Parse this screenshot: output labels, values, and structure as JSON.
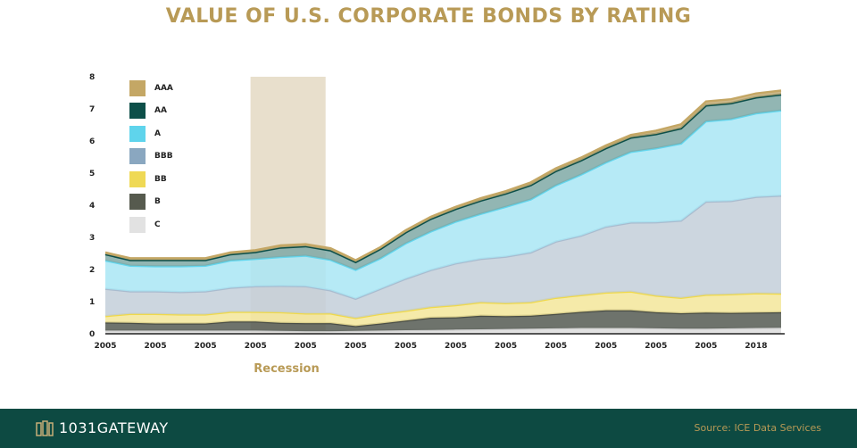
{
  "colors": {
    "title": "#b89a56",
    "footer_bg": "#0d4a42",
    "source_text": "#b89a56",
    "recession_band": "#e8dfcc",
    "recession_label": "#b89a56"
  },
  "brand": {
    "logo_text": "1031GATEWAY",
    "logo_icon": "gateway-logo-icon"
  },
  "source": "Source: ICE Data Services",
  "chart_data": {
    "type": "area",
    "stacked": true,
    "title": "VALUE OF U.S. CORPORATE BONDS BY RATING",
    "x": [
      0,
      0.5,
      1,
      1.5,
      2,
      2.5,
      3,
      3.5,
      4,
      4.5,
      5,
      5.5,
      6,
      6.5,
      7,
      7.5,
      8,
      8.5,
      9,
      9.5,
      10,
      10.5,
      11,
      11.5,
      12,
      12.5,
      13,
      13.5
    ],
    "x_tick_labels": [
      "2005",
      "2005",
      "2005",
      "2005",
      "2005",
      "2005",
      "2005",
      "2005",
      "2005",
      "2005",
      "2005",
      "2005",
      "2005",
      "2018"
    ],
    "x_tick_positions": [
      0,
      1,
      2,
      3,
      4,
      5,
      6,
      7,
      8,
      9,
      10,
      11,
      12,
      13
    ],
    "ylim": [
      0,
      8
    ],
    "y_ticks": [
      0,
      1,
      2,
      3,
      4,
      5,
      6,
      7,
      8
    ],
    "grid": false,
    "legend": "top-left",
    "recession": {
      "start": 2.9,
      "end": 4.4,
      "label": "Recession"
    },
    "series": [
      {
        "name": "C",
        "color": "#dcdcdc",
        "values": [
          0.1,
          0.1,
          0.1,
          0.1,
          0.1,
          0.1,
          0.1,
          0.09,
          0.08,
          0.08,
          0.09,
          0.1,
          0.11,
          0.12,
          0.13,
          0.14,
          0.15,
          0.16,
          0.17,
          0.18,
          0.18,
          0.18,
          0.17,
          0.16,
          0.16,
          0.17,
          0.18,
          0.19
        ]
      },
      {
        "name": "B",
        "color": "#555a52",
        "values": [
          0.25,
          0.24,
          0.22,
          0.22,
          0.22,
          0.28,
          0.28,
          0.25,
          0.25,
          0.25,
          0.15,
          0.22,
          0.3,
          0.38,
          0.38,
          0.42,
          0.4,
          0.4,
          0.45,
          0.5,
          0.55,
          0.55,
          0.5,
          0.48,
          0.5,
          0.48,
          0.48,
          0.48
        ]
      },
      {
        "name": "BB",
        "color": "#f3e69a",
        "values": [
          0.2,
          0.28,
          0.3,
          0.28,
          0.28,
          0.3,
          0.3,
          0.33,
          0.3,
          0.3,
          0.25,
          0.3,
          0.3,
          0.33,
          0.38,
          0.42,
          0.4,
          0.42,
          0.5,
          0.52,
          0.55,
          0.58,
          0.52,
          0.48,
          0.55,
          0.58,
          0.6,
          0.58
        ]
      },
      {
        "name": "BBB",
        "color": "#c3cfd9",
        "values": [
          0.85,
          0.7,
          0.7,
          0.7,
          0.72,
          0.75,
          0.8,
          0.82,
          0.85,
          0.72,
          0.6,
          0.78,
          1.0,
          1.15,
          1.3,
          1.35,
          1.45,
          1.55,
          1.75,
          1.85,
          2.05,
          2.15,
          2.28,
          2.4,
          2.9,
          2.9,
          3.0,
          3.05
        ]
      },
      {
        "name": "A",
        "color": "#a9e6f4",
        "values": [
          0.88,
          0.8,
          0.78,
          0.8,
          0.8,
          0.85,
          0.85,
          0.9,
          0.95,
          0.95,
          0.9,
          0.95,
          1.1,
          1.2,
          1.3,
          1.4,
          1.55,
          1.65,
          1.75,
          1.9,
          2.0,
          2.2,
          2.3,
          2.4,
          2.5,
          2.55,
          2.6,
          2.65
        ]
      },
      {
        "name": "AA",
        "color": "#7fa9a6",
        "values": [
          0.2,
          0.18,
          0.2,
          0.2,
          0.18,
          0.2,
          0.22,
          0.3,
          0.3,
          0.3,
          0.25,
          0.3,
          0.35,
          0.4,
          0.4,
          0.42,
          0.42,
          0.45,
          0.45,
          0.45,
          0.45,
          0.45,
          0.45,
          0.48,
          0.5,
          0.5,
          0.5,
          0.5
        ]
      },
      {
        "name": "AAA",
        "color": "#c7ae78",
        "values": [
          0.05,
          0.05,
          0.05,
          0.05,
          0.05,
          0.05,
          0.05,
          0.06,
          0.06,
          0.06,
          0.05,
          0.05,
          0.06,
          0.06,
          0.06,
          0.07,
          0.07,
          0.08,
          0.08,
          0.08,
          0.08,
          0.08,
          0.1,
          0.12,
          0.12,
          0.12,
          0.12,
          0.12
        ]
      }
    ],
    "legend_swatch_colors": {
      "AAA": "#c4a765",
      "AA": "#0d4f49",
      "A": "#5fd4ec",
      "BBB": "#8aa7c0",
      "BB": "#efd955",
      "B": "#565a4e",
      "C": "#e2e2e2"
    },
    "line_colors": {
      "C": "#cfcfcf",
      "B": "#4a4e46",
      "BB": "#f0d94a",
      "BBB": "#a9bccf",
      "A": "#62d6ee",
      "AA": "#0d4f49",
      "AAA": "#c4a765"
    }
  }
}
